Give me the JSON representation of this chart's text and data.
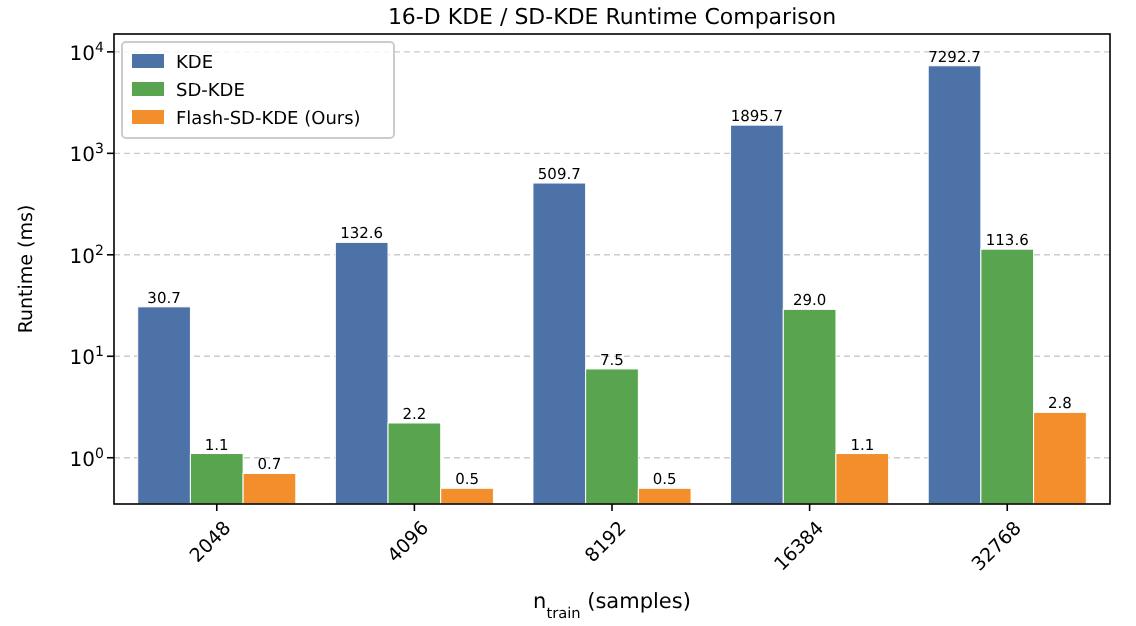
{
  "chart_data": {
    "type": "bar",
    "title": "16-D KDE / SD-KDE Runtime Comparison",
    "xlabel": "n$_{train}$ (samples)",
    "ylabel": "Runtime (ms)",
    "categories": [
      "2048",
      "4096",
      "8192",
      "16384",
      "32768"
    ],
    "series": [
      {
        "name": "KDE",
        "color": "#4c72a8",
        "values": [
          30.7,
          132.6,
          509.7,
          1895.7,
          7292.7
        ],
        "value_labels": [
          "30.7",
          "132.6",
          "509.7",
          "1895.7",
          "7292.7"
        ]
      },
      {
        "name": "SD-KDE",
        "color": "#59a44f",
        "values": [
          1.1,
          2.2,
          7.5,
          29.0,
          113.6
        ],
        "value_labels": [
          "1.1",
          "2.2",
          "7.5",
          "29.0",
          "113.6"
        ]
      },
      {
        "name": "Flash-SD-KDE (Ours)",
        "color": "#f28e2b",
        "values": [
          0.7,
          0.5,
          0.5,
          1.1,
          2.8
        ],
        "value_labels": [
          "0.7",
          "0.5",
          "0.5",
          "1.1",
          "2.8"
        ]
      }
    ],
    "log": true,
    "ylim": [
      0.35,
      15000
    ],
    "yticks": [
      {
        "value": 1,
        "label": "10$^{0}$"
      },
      {
        "value": 10,
        "label": "10$^{1}$"
      },
      {
        "value": 100,
        "label": "10$^{2}$"
      },
      {
        "value": 1000,
        "label": "10$^{3}$"
      },
      {
        "value": 10000,
        "label": "10$^{4}$"
      }
    ],
    "grid": "y",
    "legend": "top left"
  }
}
